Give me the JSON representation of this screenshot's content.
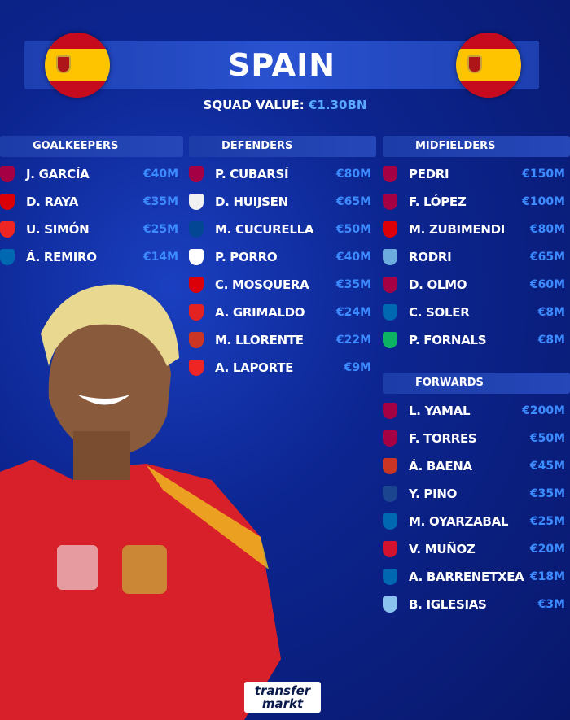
{
  "header": {
    "title": "SPAIN",
    "squad_value_label": "SQUAD VALUE:",
    "squad_value": "€1.30BN",
    "flag_icon": "spain-flag-icon"
  },
  "clubs": {
    "barcelona": "#a50044",
    "arsenal": "#db0007",
    "athletic": "#ee2523",
    "realsociedad": "#0067b1",
    "realmadrid": "#f1f1f1",
    "chelsea": "#034694",
    "tottenham": "#ffffff",
    "leverkusen": "#e32221",
    "atletico": "#cb3524",
    "mancity": "#6cabdd",
    "betis": "#0bb363",
    "palace": "#1b458f",
    "osasuna": "#d2122e",
    "celta": "#8ac3ee"
  },
  "sections": [
    {
      "title": "GOALKEEPERS",
      "players": [
        {
          "name": "J. GARCÍA",
          "value": "€40M",
          "club": "barcelona"
        },
        {
          "name": "D. RAYA",
          "value": "€35M",
          "club": "arsenal"
        },
        {
          "name": "U. SIMÓN",
          "value": "€25M",
          "club": "athletic"
        },
        {
          "name": "Á. REMIRO",
          "value": "€14M",
          "club": "realsociedad"
        }
      ]
    },
    {
      "title": "DEFENDERS",
      "players": [
        {
          "name": "P. CUBARSÍ",
          "value": "€80M",
          "club": "barcelona"
        },
        {
          "name": "D. HUIJSEN",
          "value": "€65M",
          "club": "realmadrid"
        },
        {
          "name": "M. CUCURELLA",
          "value": "€50M",
          "club": "chelsea"
        },
        {
          "name": "P. PORRO",
          "value": "€40M",
          "club": "tottenham"
        },
        {
          "name": "C. MOSQUERA",
          "value": "€35M",
          "club": "arsenal"
        },
        {
          "name": "A. GRIMALDO",
          "value": "€24M",
          "club": "leverkusen"
        },
        {
          "name": "M. LLORENTE",
          "value": "€22M",
          "club": "atletico"
        },
        {
          "name": "A. LAPORTE",
          "value": "€9M",
          "club": "athletic"
        }
      ]
    },
    {
      "title": "MIDFIELDERS",
      "players": [
        {
          "name": "PEDRI",
          "value": "€150M",
          "club": "barcelona"
        },
        {
          "name": "F. LÓPEZ",
          "value": "€100M",
          "club": "barcelona"
        },
        {
          "name": "M. ZUBIMENDI",
          "value": "€80M",
          "club": "arsenal"
        },
        {
          "name": "RODRI",
          "value": "€65M",
          "club": "mancity"
        },
        {
          "name": "D. OLMO",
          "value": "€60M",
          "club": "barcelona"
        },
        {
          "name": "C. SOLER",
          "value": "€8M",
          "club": "realsociedad"
        },
        {
          "name": "P. FORNALS",
          "value": "€8M",
          "club": "betis"
        }
      ]
    },
    {
      "title": "FORWARDS",
      "players": [
        {
          "name": "L. YAMAL",
          "value": "€200M",
          "club": "barcelona"
        },
        {
          "name": "F. TORRES",
          "value": "€50M",
          "club": "barcelona"
        },
        {
          "name": "Á. BAENA",
          "value": "€45M",
          "club": "atletico"
        },
        {
          "name": "Y. PINO",
          "value": "€35M",
          "club": "palace"
        },
        {
          "name": "M. OYARZABAL",
          "value": "€25M",
          "club": "realsociedad"
        },
        {
          "name": "V. MUÑOZ",
          "value": "€20M",
          "club": "osasuna"
        },
        {
          "name": "A. BARRENETXEA",
          "value": "€18M",
          "club": "realsociedad"
        },
        {
          "name": "B. IGLESIAS",
          "value": "€3M",
          "club": "celta"
        }
      ]
    }
  ],
  "footer": {
    "logo": "transfermarkt"
  }
}
